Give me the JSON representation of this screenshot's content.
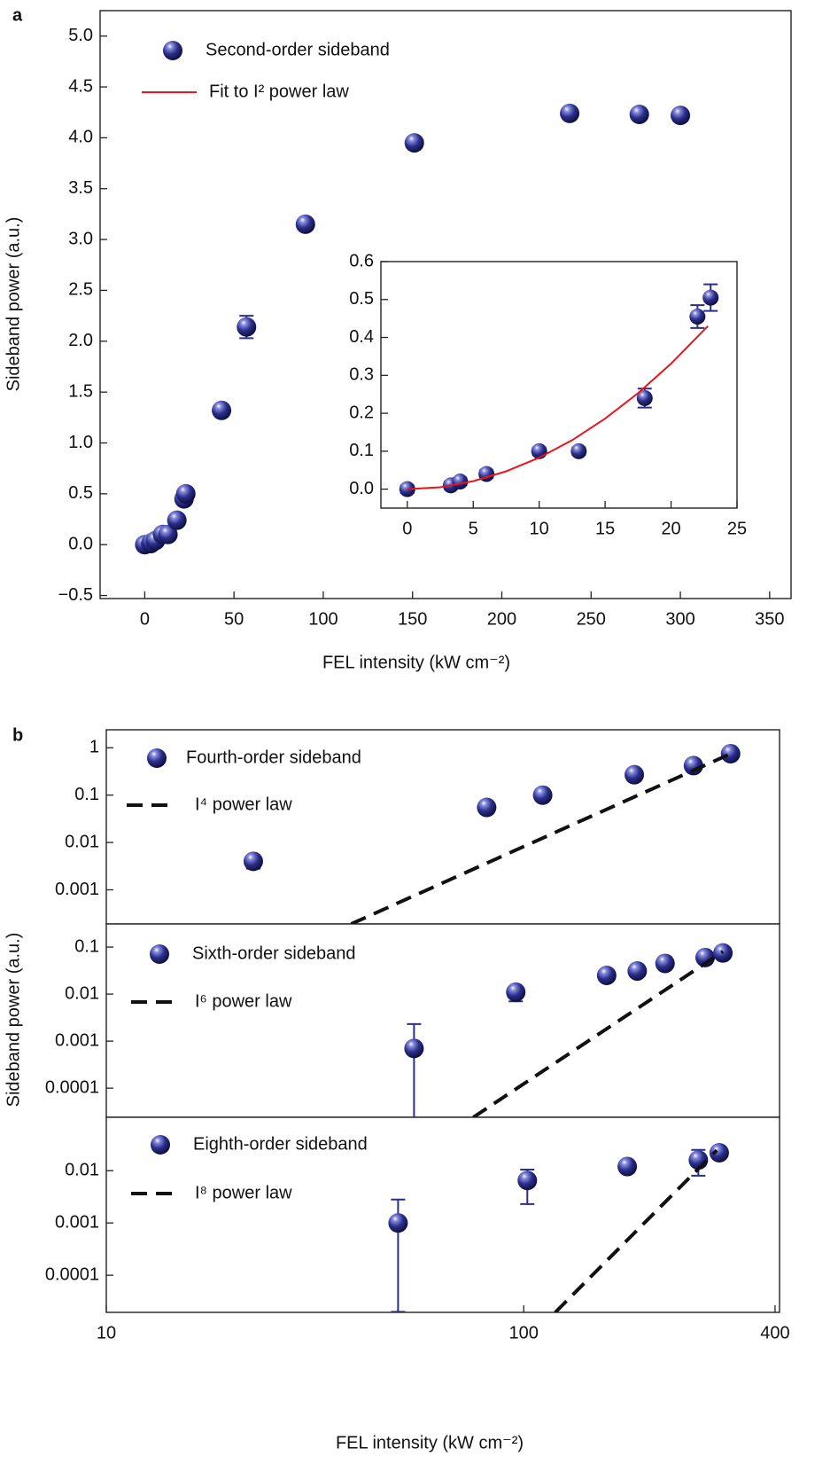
{
  "chart_data": [
    {
      "type": "scatter",
      "panel": "a",
      "xlabel": "FEL intensity (kW cm⁻²)",
      "ylabel": "Sideband power (a.u.)",
      "xlim": [
        -25,
        362
      ],
      "ylim": [
        -0.53,
        5.25
      ],
      "xticks": [
        0,
        50,
        100,
        150,
        200,
        250,
        300,
        350
      ],
      "yticks": [
        {
          "value": -0.5,
          "label": "−0.5"
        },
        {
          "value": 0,
          "label": "0.0"
        },
        {
          "value": 0.5,
          "label": "0.5"
        },
        {
          "value": 1,
          "label": "1.0"
        },
        {
          "value": 1.5,
          "label": "1.5"
        },
        {
          "value": 2,
          "label": "2.0"
        },
        {
          "value": 2.5,
          "label": "2.5"
        },
        {
          "value": 3,
          "label": "3.0"
        },
        {
          "value": 3.5,
          "label": "3.5"
        },
        {
          "value": 4,
          "label": "4.0"
        },
        {
          "value": 4.5,
          "label": "4.5"
        },
        {
          "value": 5,
          "label": "5.0"
        }
      ],
      "legend": "upper left",
      "series": [
        {
          "name": "Second-order sideband",
          "color": "#2b2f8a",
          "marker": "sphere",
          "x": [
            0,
            3.3,
            4,
            6,
            10,
            13,
            18,
            22,
            23,
            43,
            57,
            90,
            151,
            238,
            277,
            300
          ],
          "values": [
            0,
            0.01,
            0.02,
            0.04,
            0.1,
            0.1,
            0.24,
            0.45,
            0.5,
            1.32,
            2.14,
            3.15,
            3.95,
            4.24,
            4.23,
            4.22
          ],
          "err_minus": [
            0.01,
            0.01,
            0.01,
            0.01,
            0.01,
            0.01,
            0.025,
            0.03,
            0.04,
            0.05,
            0.11,
            0.05,
            0.03,
            0.04,
            0.03,
            0.03
          ],
          "err_plus": [
            0.01,
            0.01,
            0.01,
            0.01,
            0.01,
            0.01,
            0.025,
            0.03,
            0.04,
            0.05,
            0.11,
            0.05,
            0.03,
            0.04,
            0.03,
            0.03
          ]
        }
      ]
    },
    {
      "type": "scatter",
      "xlim": [
        -2,
        25
      ],
      "ylim": [
        -0.05,
        0.6
      ],
      "xticks": [
        0,
        5,
        10,
        15,
        20,
        25
      ],
      "yticks": [
        {
          "value": 0,
          "label": "0.0"
        },
        0.1,
        0.2,
        0.3,
        0.4,
        0.5,
        0.6
      ],
      "series": [
        {
          "name": "Second-order sideband",
          "color": "#2b2f8a",
          "marker": "sphere",
          "x": [
            0,
            3.3,
            4,
            6,
            10,
            13,
            18,
            22,
            23
          ],
          "values": [
            0,
            0.01,
            0.02,
            0.04,
            0.1,
            0.1,
            0.24,
            0.455,
            0.505
          ],
          "err_minus": [
            0.01,
            0.01,
            0.01,
            0.01,
            0.01,
            0.01,
            0.025,
            0.03,
            0.035
          ],
          "err_plus": [
            0.01,
            0.01,
            0.01,
            0.01,
            0.01,
            0.01,
            0.025,
            0.03,
            0.035
          ]
        },
        {
          "name": "Fit to I² power law",
          "color": "#e8151b",
          "style": "solid",
          "x": [
            0,
            2.5,
            5,
            7.5,
            10,
            12.5,
            15,
            17.5,
            20,
            22.8
          ],
          "values": [
            0,
            0.005,
            0.021,
            0.047,
            0.083,
            0.129,
            0.186,
            0.253,
            0.331,
            0.43
          ]
        }
      ]
    },
    {
      "type": "scatter",
      "panel": "b",
      "log_x": true,
      "log_y": true,
      "xlim": [
        10,
        410
      ],
      "ylim": [
        0.00019,
        2.4
      ],
      "yticks": [
        0.001,
        0.01,
        0.1,
        1
      ],
      "legend": "upper left",
      "series": [
        {
          "name": "Fourth-order sideband",
          "color": "#2b2f8a",
          "marker": "sphere",
          "x": [
            22.5,
            81.5,
            111,
            184,
            255,
            313
          ],
          "values": [
            0.004,
            0.055,
            0.1,
            0.27,
            0.42,
            0.75
          ],
          "err_minus": [
            0.0012,
            0.01,
            0.015,
            0.04,
            0.05,
            0.1
          ],
          "err_plus": [
            0.0012,
            0.01,
            0.015,
            0.04,
            0.05,
            0.1
          ]
        },
        {
          "name": "I⁴ power law",
          "color": "#111111",
          "style": "dashed",
          "x": [
            38.6,
            313
          ],
          "values": [
            0.00019,
            0.75
          ]
        }
      ]
    },
    {
      "type": "scatter",
      "log_x": true,
      "log_y": true,
      "xlim": [
        10,
        410
      ],
      "ylim": [
        2.4e-05,
        0.31
      ],
      "ylabel": "Sideband power (a.u.)",
      "yticks": [
        0.0001,
        0.001,
        0.01,
        0.1
      ],
      "legend": "upper left",
      "series": [
        {
          "name": "Sixth-order sideband",
          "color": "#2b2f8a",
          "marker": "sphere",
          "x": [
            54.6,
            95.7,
            158,
            187,
            218,
            272,
            300
          ],
          "values": [
            0.0007,
            0.011,
            0.025,
            0.031,
            0.045,
            0.06,
            0.075
          ],
          "err_minus": [
            0.00068,
            0.004,
            0.006,
            0.006,
            0.008,
            0.01,
            0.012
          ],
          "err_plus": [
            0.0016,
            0.002,
            0.004,
            0.004,
            0.006,
            0.008,
            0.01
          ]
        },
        {
          "name": "I⁶ power law",
          "color": "#111111",
          "style": "dashed",
          "x": [
            75.7,
            300
          ],
          "values": [
            2.4e-05,
            0.08
          ]
        }
      ]
    },
    {
      "type": "scatter",
      "log_x": true,
      "log_y": true,
      "xlim": [
        10,
        410
      ],
      "ylim": [
        1.95e-05,
        0.105
      ],
      "xlabel": "FEL intensity (kW cm⁻²)",
      "xticks": [
        10,
        100,
        400
      ],
      "yticks": [
        0.0001,
        0.001,
        0.01
      ],
      "legend": "upper left",
      "series": [
        {
          "name": "Eighth-order sideband",
          "color": "#2b2f8a",
          "marker": "sphere",
          "x": [
            50,
            102,
            177,
            262,
            294
          ],
          "values": [
            0.001,
            0.0065,
            0.012,
            0.016,
            0.022
          ],
          "err_minus": [
            0.00098,
            0.0042,
            0.002,
            0.008,
            0.003
          ],
          "err_plus": [
            0.0018,
            0.004,
            0.002,
            0.009,
            0.003
          ]
        },
        {
          "name": "I⁸ power law",
          "color": "#111111",
          "style": "dashed",
          "x": [
            119,
            290
          ],
          "values": [
            1.95e-05,
            0.0245
          ]
        }
      ]
    }
  ]
}
